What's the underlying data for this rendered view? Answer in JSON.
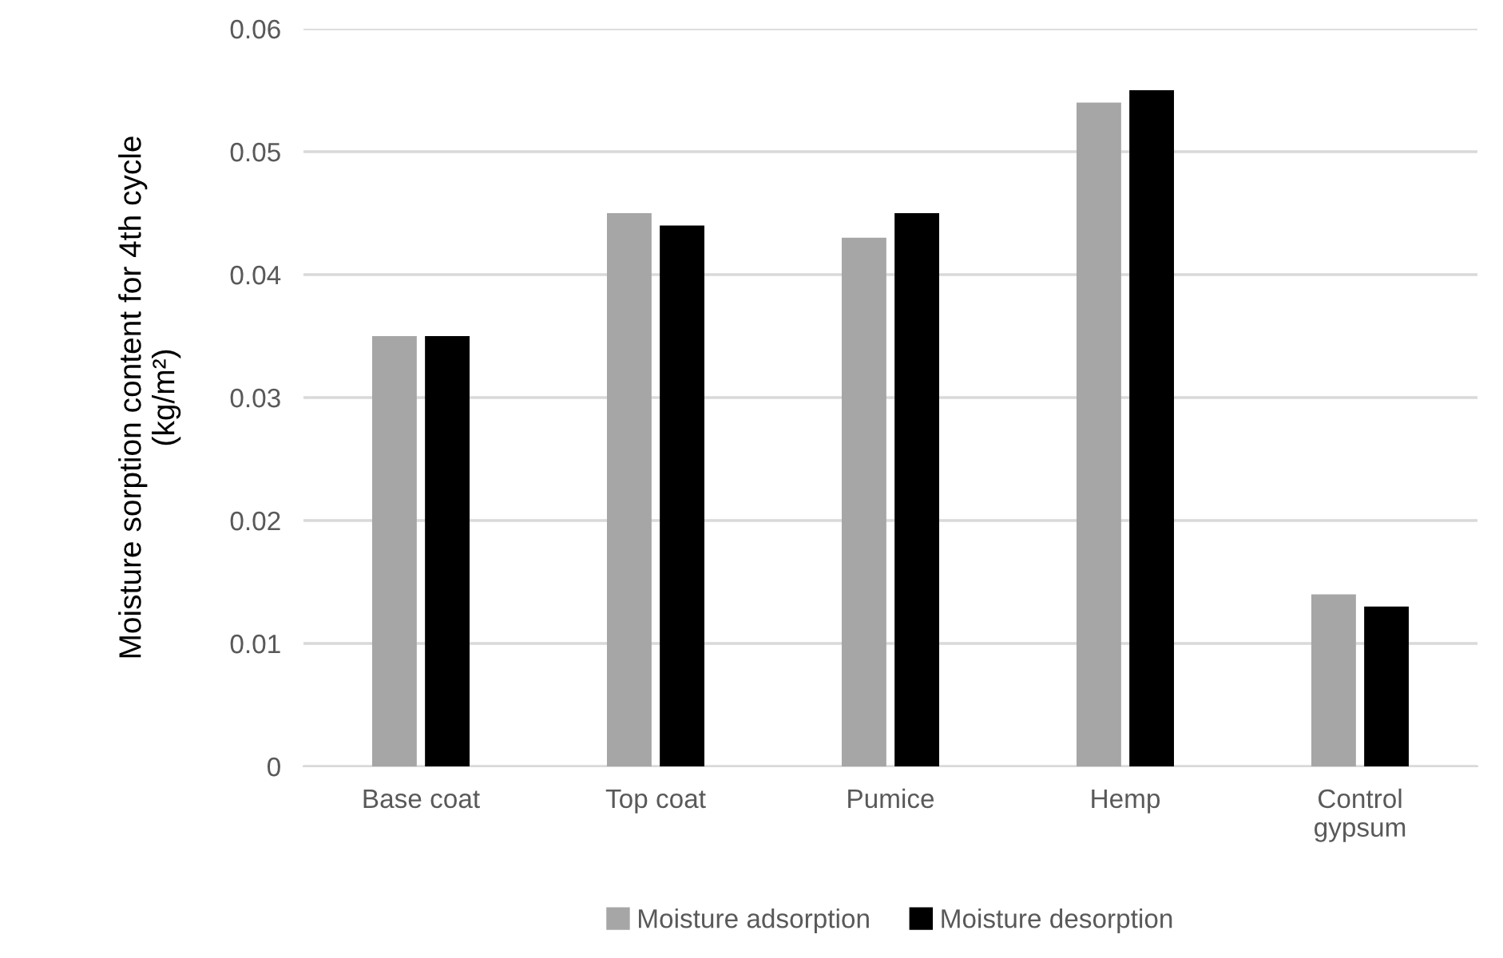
{
  "chart_data": {
    "type": "bar",
    "ylabel": "Moisture sorption content for 4th cycle\n(kg/m²)",
    "categories": [
      "Base coat",
      "Top coat",
      "Pumice",
      "Hemp",
      "Control\ngypsum"
    ],
    "series": [
      {
        "name": "Moisture adsorption",
        "color": "#a6a6a6",
        "values": [
          0.035,
          0.045,
          0.043,
          0.054,
          0.014
        ]
      },
      {
        "name": "Moisture desorption",
        "color": "#000000",
        "values": [
          0.035,
          0.044,
          0.045,
          0.055,
          0.013
        ]
      }
    ],
    "ylim": [
      0,
      0.06
    ],
    "yticks": [
      {
        "value": 0,
        "label": "0"
      },
      0.01,
      0.02,
      0.03,
      0.04,
      0.05,
      0.06
    ],
    "grid": "y",
    "legend": "bottom"
  }
}
